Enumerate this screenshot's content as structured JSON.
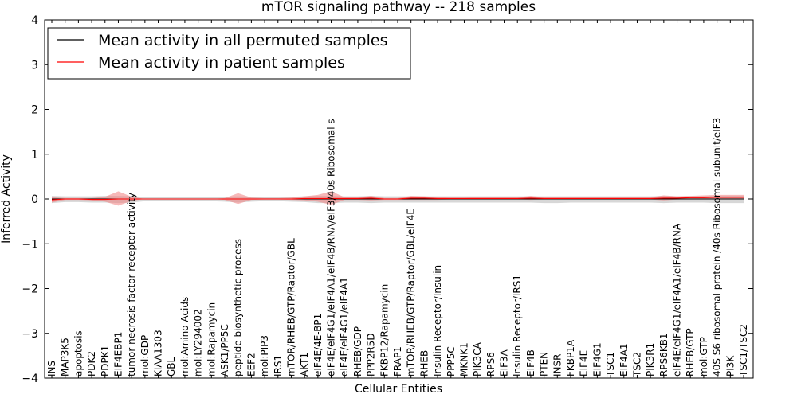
{
  "chart_data": {
    "type": "line",
    "title": "mTOR signaling pathway -- 218 samples",
    "xlabel": "Cellular Entities",
    "ylabel": "Inferred Activity",
    "ylim": [
      -4,
      4
    ],
    "yticks": [
      4,
      3,
      2,
      1,
      0,
      -1,
      -2,
      -3,
      -4
    ],
    "grid": false,
    "legend_position": "top-left",
    "colors": {
      "permuted": "#000000",
      "patient": "#ff0000",
      "permuted_band": "#bdbdbd",
      "patient_band": "#f08080"
    },
    "categories": [
      "INS",
      "MAP3K5",
      "apoptosis",
      "PDK2",
      "PDPK1",
      "EIF4EBP1",
      "tumor necrosis factor receptor activity",
      "mol:GDP",
      "KIAA1303",
      "GBL",
      "mol:Amino Acids",
      "mol:LY294002",
      "mol:Rapamycin",
      "ASK1/PP5C",
      "peptide biosynthetic process",
      "EEF2",
      "mol:PIP3",
      "IRS1",
      "mTOR/RHEB/GTP/Raptor/GBL",
      "AKT1",
      "eIF4E/4E-BP1",
      "eIF4E/eIF4G1/eIF4A1/eIF4B/RNA/eIF3/40s Ribosomal s",
      "eIF4E/eIF4G1/eIF4A1",
      "RHEB/GDP",
      "PPP2R5D",
      "FKBP12/Rapamycin",
      "FRAP1",
      "mTOR/RHEB/GTP/Raptor/GBL/eIF4E",
      "RHEB",
      "Insulin Receptor/Insulin",
      "PPP5C",
      "MKNK1",
      "PIK3CA",
      "RPS6",
      "EIF3A",
      "Insulin Receptor/IRS1",
      "EIF4B",
      "PTEN",
      "INSR",
      "FKBP1A",
      "EIF4E",
      "EIF4G1",
      "TSC1",
      "EIF4A1",
      "TSC2",
      "PIK3R1",
      "RPS6KB1",
      "eIF4E/eIF4G1/eIF4A1/eIF4B/RNA",
      "RHEB/GTP",
      "mol:GTP",
      "40S S6 ribosomal protein /40s Ribosomal subunit/eIF3",
      "PI3K",
      "TSC1/TSC2"
    ],
    "series": [
      {
        "name": "Mean activity in all permuted samples",
        "values": [
          0,
          0,
          0,
          0,
          0,
          0,
          0,
          0,
          0,
          0,
          0,
          0,
          0,
          0,
          0,
          0,
          0,
          0,
          0,
          0,
          0,
          0,
          0,
          0,
          0,
          0,
          0,
          0,
          0,
          0,
          0,
          0,
          0,
          0,
          0,
          0,
          0,
          0,
          0,
          0,
          0,
          0,
          0,
          0,
          0,
          0,
          0,
          0,
          0,
          0,
          0,
          0,
          0
        ],
        "upper": [
          0.07,
          0.06,
          0.06,
          0.06,
          0.07,
          0.07,
          0.06,
          0.05,
          0.05,
          0.05,
          0.05,
          0.05,
          0.05,
          0.05,
          0.06,
          0.05,
          0.05,
          0.05,
          0.05,
          0.06,
          0.07,
          0.07,
          0.06,
          0.06,
          0.07,
          0.06,
          0.06,
          0.06,
          0.06,
          0.06,
          0.06,
          0.06,
          0.06,
          0.06,
          0.06,
          0.06,
          0.06,
          0.06,
          0.06,
          0.06,
          0.06,
          0.06,
          0.06,
          0.06,
          0.06,
          0.06,
          0.07,
          0.06,
          0.06,
          0.06,
          0.07,
          0.07,
          0.07
        ],
        "lower": [
          -0.09,
          -0.07,
          -0.07,
          -0.08,
          -0.08,
          -0.09,
          -0.08,
          -0.05,
          -0.05,
          -0.05,
          -0.05,
          -0.05,
          -0.05,
          -0.06,
          -0.08,
          -0.06,
          -0.05,
          -0.05,
          -0.06,
          -0.07,
          -0.09,
          -0.09,
          -0.08,
          -0.08,
          -0.09,
          -0.08,
          -0.08,
          -0.08,
          -0.08,
          -0.08,
          -0.08,
          -0.08,
          -0.08,
          -0.08,
          -0.08,
          -0.08,
          -0.08,
          -0.09,
          -0.09,
          -0.08,
          -0.08,
          -0.08,
          -0.08,
          -0.08,
          -0.08,
          -0.08,
          -0.09,
          -0.08,
          -0.08,
          -0.08,
          -0.09,
          -0.09,
          -0.09
        ]
      },
      {
        "name": "Mean activity in patient samples",
        "values": [
          -0.02,
          0.0,
          0.0,
          -0.01,
          -0.01,
          0.0,
          0.0,
          0.0,
          0.0,
          0.0,
          0.0,
          0.0,
          0.0,
          0.0,
          0.0,
          0.0,
          0.0,
          0.0,
          0.0,
          0.01,
          0.01,
          0.01,
          0.01,
          0.01,
          0.02,
          0.0,
          0.0,
          0.02,
          0.02,
          0.01,
          0.01,
          0.01,
          0.01,
          0.01,
          0.01,
          0.01,
          0.02,
          0.01,
          0.01,
          0.01,
          0.01,
          0.01,
          0.01,
          0.01,
          0.01,
          0.01,
          0.02,
          0.02,
          0.03,
          0.03,
          0.04,
          0.04,
          0.04
        ],
        "upper": [
          0.04,
          0.02,
          0.02,
          0.02,
          0.05,
          0.17,
          0.05,
          0.0,
          0.0,
          0.0,
          0.0,
          0.0,
          0.0,
          0.02,
          0.13,
          0.03,
          0.02,
          0.02,
          0.03,
          0.06,
          0.09,
          0.17,
          0.04,
          0.04,
          0.07,
          0.02,
          0.02,
          0.07,
          0.06,
          0.04,
          0.03,
          0.03,
          0.04,
          0.04,
          0.04,
          0.04,
          0.07,
          0.04,
          0.04,
          0.04,
          0.04,
          0.04,
          0.04,
          0.04,
          0.04,
          0.04,
          0.08,
          0.06,
          0.07,
          0.08,
          0.09,
          0.09,
          0.09
        ],
        "lower": [
          -0.08,
          -0.02,
          -0.02,
          -0.03,
          -0.06,
          -0.15,
          -0.04,
          0.0,
          0.0,
          0.0,
          0.0,
          0.0,
          0.0,
          -0.02,
          -0.11,
          -0.02,
          -0.01,
          -0.01,
          -0.02,
          -0.03,
          -0.06,
          -0.13,
          -0.02,
          -0.02,
          -0.03,
          -0.02,
          -0.02,
          -0.02,
          -0.02,
          -0.02,
          -0.01,
          -0.01,
          -0.01,
          -0.01,
          -0.01,
          -0.01,
          -0.02,
          -0.01,
          -0.01,
          -0.01,
          -0.01,
          -0.01,
          -0.01,
          -0.01,
          -0.01,
          -0.01,
          -0.03,
          -0.01,
          0.0,
          0.0,
          0.0,
          0.0,
          0.0
        ]
      }
    ]
  }
}
